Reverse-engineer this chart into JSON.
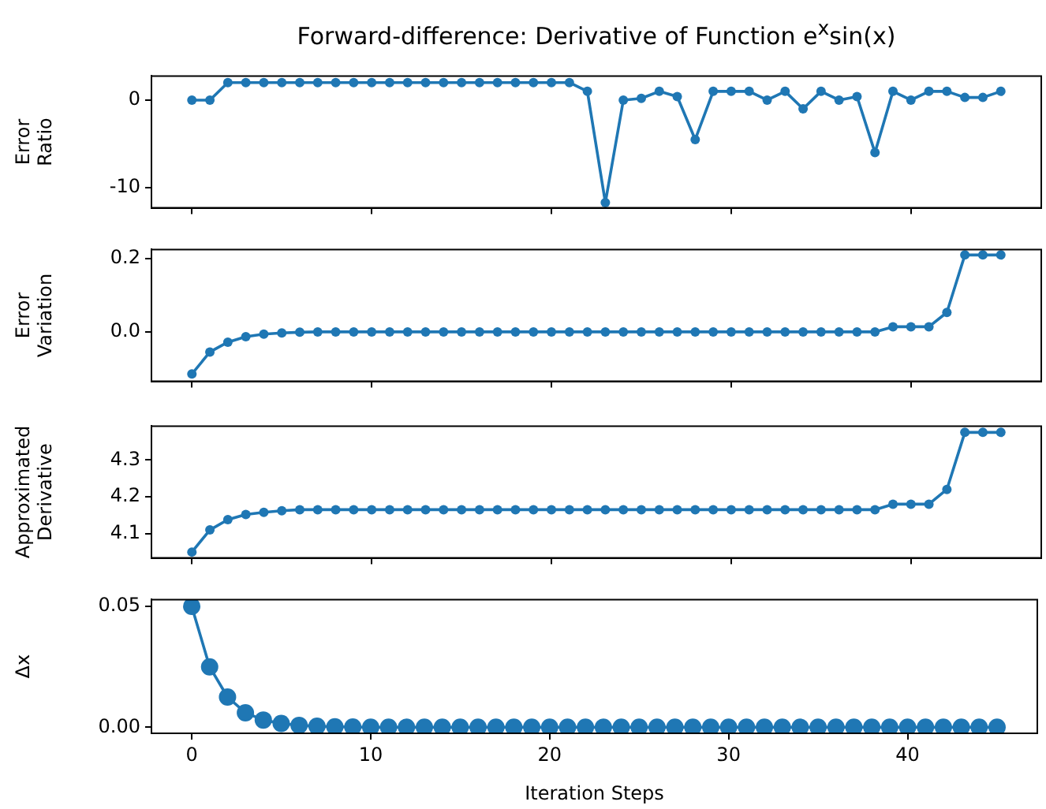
{
  "chart_data": [
    {
      "type": "line",
      "title": "Forward-difference: Derivative of Function  e$^{x}$sin(x)",
      "ylabel": "Error Ratio",
      "x": [
        0,
        1,
        2,
        3,
        4,
        5,
        6,
        7,
        8,
        9,
        10,
        11,
        12,
        13,
        14,
        15,
        16,
        17,
        18,
        19,
        20,
        21,
        22,
        23,
        24,
        25,
        26,
        27,
        28,
        29,
        30,
        31,
        32,
        33,
        34,
        35,
        36,
        37,
        38,
        39,
        40,
        41,
        42,
        43,
        44,
        45
      ],
      "values": [
        0,
        0,
        2,
        2,
        2,
        2,
        2,
        2,
        2,
        2,
        2,
        2,
        2,
        2,
        2,
        2,
        2,
        2,
        2,
        2,
        2,
        2,
        1,
        -11.7,
        0,
        0.2,
        1,
        0.4,
        -4.5,
        1,
        1,
        1,
        0,
        1,
        -1,
        1,
        0,
        0.4,
        -6,
        1,
        0,
        1,
        1,
        0.3,
        0.3,
        1
      ],
      "color": "#1f77b4",
      "marker": "circle",
      "xlim": [
        -2.25,
        47.25
      ],
      "xticks": [
        0,
        10,
        20,
        30,
        40
      ],
      "ylim": [
        -12.3,
        2.75
      ],
      "yticks": [
        -10,
        0
      ],
      "tick_labels": "y"
    },
    {
      "type": "line",
      "ylabel": "Error Variation",
      "x": [
        0,
        1,
        2,
        3,
        4,
        5,
        6,
        7,
        8,
        9,
        10,
        11,
        12,
        13,
        14,
        15,
        16,
        17,
        18,
        19,
        20,
        21,
        22,
        23,
        24,
        25,
        26,
        27,
        28,
        29,
        30,
        31,
        32,
        33,
        34,
        35,
        36,
        37,
        38,
        39,
        40,
        41,
        42,
        43,
        44,
        45
      ],
      "values": [
        -0.115,
        -0.055,
        -0.028,
        -0.013,
        -0.006,
        -0.003,
        -0.001,
        0,
        0,
        0,
        0,
        0,
        0,
        0,
        0,
        0,
        0,
        0,
        0,
        0,
        0,
        0,
        0,
        0,
        0,
        0,
        0,
        0,
        0,
        0,
        0,
        0,
        0,
        0,
        0,
        0,
        0,
        0,
        0,
        0.014,
        0.014,
        0.014,
        0.053,
        0.21,
        0.21,
        0.21
      ],
      "color": "#1f77b4",
      "marker": "circle",
      "xlim": [
        -2.25,
        47.25
      ],
      "xticks": [
        0,
        10,
        20,
        30,
        40
      ],
      "ylim": [
        -0.135,
        0.225
      ],
      "yticks": [
        {
          "value": 0,
          "label": "0.0"
        },
        {
          "value": 0.2,
          "label": "0.2"
        }
      ],
      "tick_labels": "y"
    },
    {
      "type": "line",
      "ylabel": "Approximated Derivative",
      "x": [
        0,
        1,
        2,
        3,
        4,
        5,
        6,
        7,
        8,
        9,
        10,
        11,
        12,
        13,
        14,
        15,
        16,
        17,
        18,
        19,
        20,
        21,
        22,
        23,
        24,
        25,
        26,
        27,
        28,
        29,
        30,
        31,
        32,
        33,
        34,
        35,
        36,
        37,
        38,
        39,
        40,
        41,
        42,
        43,
        44,
        45
      ],
      "values": [
        4.05,
        4.11,
        4.138,
        4.152,
        4.158,
        4.162,
        4.165,
        4.165,
        4.165,
        4.165,
        4.165,
        4.165,
        4.165,
        4.165,
        4.165,
        4.165,
        4.165,
        4.165,
        4.165,
        4.165,
        4.165,
        4.165,
        4.165,
        4.165,
        4.165,
        4.165,
        4.165,
        4.165,
        4.165,
        4.165,
        4.165,
        4.165,
        4.165,
        4.165,
        4.165,
        4.165,
        4.165,
        4.165,
        4.165,
        4.18,
        4.18,
        4.18,
        4.22,
        4.375,
        4.375,
        4.375
      ],
      "color": "#1f77b4",
      "marker": "circle",
      "xlim": [
        -2.25,
        47.25
      ],
      "xticks": [
        0,
        10,
        20,
        30,
        40
      ],
      "ylim": [
        4.034,
        4.392
      ],
      "yticks": [
        4.1,
        4.2,
        4.3
      ],
      "tick_labels": "y"
    },
    {
      "type": "line",
      "ylabel": "Δx",
      "xlabel": "Iteration Steps",
      "x": [
        0,
        1,
        2,
        3,
        4,
        5,
        6,
        7,
        8,
        9,
        10,
        11,
        12,
        13,
        14,
        15,
        16,
        17,
        18,
        19,
        20,
        21,
        22,
        23,
        24,
        25,
        26,
        27,
        28,
        29,
        30,
        31,
        32,
        33,
        34,
        35,
        36,
        37,
        38,
        39,
        40,
        41,
        42,
        43,
        44,
        45
      ],
      "values": [
        0.05,
        0.025,
        0.0125,
        0.006,
        0.003,
        0.0016,
        0.0008,
        0.0004,
        0.0002,
        0.0001,
        0,
        0,
        0,
        0,
        0,
        0,
        0,
        0,
        0,
        0,
        0,
        0,
        0,
        0,
        0,
        0,
        0,
        0,
        0,
        0,
        0,
        0,
        0,
        0,
        0,
        0,
        0,
        0,
        0,
        0,
        0,
        0,
        0,
        0,
        0,
        0
      ],
      "color": "#1f77b4",
      "marker": "circle",
      "xlim": [
        -2.25,
        47.25
      ],
      "xticks": [
        0,
        10,
        20,
        30,
        40
      ],
      "ylim": [
        -0.0025,
        0.0528
      ],
      "yticks": [
        {
          "value": 0,
          "label": "0.00"
        },
        {
          "value": 0.05,
          "label": "0.05"
        }
      ]
    }
  ]
}
